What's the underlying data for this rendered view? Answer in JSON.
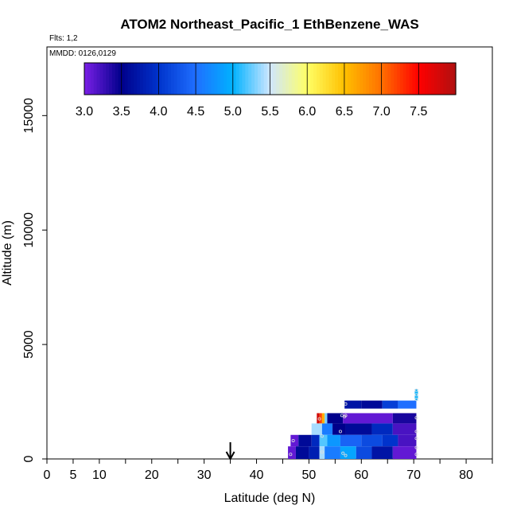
{
  "chart_data": {
    "type": "heatmap",
    "title": "ATOM2 Northeast_Pacific_1 EthBenzene_WAS",
    "flights_label": "Flts: 1,2",
    "mmdd_label": "MMDD: 0126,0129",
    "xlabel": "Latitude (deg N)",
    "ylabel": "Altitude (m)",
    "xlim": [
      0,
      85
    ],
    "ylim": [
      0,
      18000
    ],
    "x_ticks": [
      0,
      5,
      10,
      20,
      30,
      40,
      50,
      60,
      70,
      80
    ],
    "y_ticks": [
      0,
      5000,
      10000,
      15000
    ],
    "colorbar": {
      "min": 3.0,
      "max": 8.0,
      "tick_labels": [
        "3.0",
        "3.5",
        "4.0",
        "4.5",
        "5.0",
        "5.5",
        "6.0",
        "6.5",
        "7.0",
        "7.5"
      ],
      "colors": [
        "#7a1fe6",
        "#00008b",
        "#0033cc",
        "#1f6fff",
        "#00b2ff",
        "#cfe6ff",
        "#ffff66",
        "#ffc000",
        "#ff7000",
        "#ff0000",
        "#b01010"
      ]
    },
    "marker_latitude": 35,
    "rows": [
      {
        "alt": [
          2800,
          3050
        ],
        "cells": [
          {
            "lat": [
              70.2,
              70.8
            ],
            "value": 5.0
          }
        ]
      },
      {
        "alt": [
          2550,
          2800
        ],
        "cells": [
          {
            "lat": [
              70.2,
              70.8
            ],
            "value": 5.0
          }
        ]
      },
      {
        "alt": [
          2200,
          2550
        ],
        "cells": [
          {
            "lat": [
              56.8,
              60.0
            ],
            "value": 3.7
          },
          {
            "lat": [
              60.0,
              64.0
            ],
            "value": 3.6
          },
          {
            "lat": [
              64.0,
              67.0
            ],
            "value": 4.1
          },
          {
            "lat": [
              67.0,
              70.5
            ],
            "value": 4.5
          }
        ]
      },
      {
        "alt": [
          1550,
          2000
        ],
        "cells": [
          {
            "lat": [
              51.5,
              52.0
            ],
            "value": 7.8
          },
          {
            "lat": [
              52.0,
              52.5
            ],
            "value": 7.2
          },
          {
            "lat": [
              52.5,
              53.0
            ],
            "value": 6.6
          },
          {
            "lat": [
              53.0,
              53.5
            ],
            "value": 5.3
          },
          {
            "lat": [
              53.5,
              56.5
            ],
            "value": 3.5
          },
          {
            "lat": [
              56.5,
              66.0
            ],
            "value": 3.1
          },
          {
            "lat": [
              66.0,
              70.5
            ],
            "value": 3.4
          }
        ]
      },
      {
        "alt": [
          1050,
          1550
        ],
        "cells": [
          {
            "lat": [
              50.5,
              52.5
            ],
            "value": 5.4
          },
          {
            "lat": [
              52.5,
              54.5
            ],
            "value": 4.6
          },
          {
            "lat": [
              54.5,
              57.0
            ],
            "value": 3.5
          },
          {
            "lat": [
              57.0,
              62.0
            ],
            "value": 3.6
          },
          {
            "lat": [
              62.0,
              66.0
            ],
            "value": 3.9
          },
          {
            "lat": [
              66.0,
              70.5
            ],
            "value": 3.2
          }
        ]
      },
      {
        "alt": [
          550,
          1050
        ],
        "cells": [
          {
            "lat": [
              46.5,
              48.0
            ],
            "value": 3.1
          },
          {
            "lat": [
              48.0,
              50.5
            ],
            "value": 3.6
          },
          {
            "lat": [
              50.5,
              52.0
            ],
            "value": 3.9
          },
          {
            "lat": [
              52.0,
              53.5
            ],
            "value": 5.2
          },
          {
            "lat": [
              53.5,
              56.0
            ],
            "value": 4.8
          },
          {
            "lat": [
              56.0,
              60.0
            ],
            "value": 4.4
          },
          {
            "lat": [
              60.0,
              64.0
            ],
            "value": 4.2
          },
          {
            "lat": [
              64.0,
              67.0
            ],
            "value": 4.0
          },
          {
            "lat": [
              67.0,
              70.5
            ],
            "value": 3.2
          }
        ]
      },
      {
        "alt": [
          0,
          550
        ],
        "cells": [
          {
            "lat": [
              46.0,
              47.5
            ],
            "value": 3.1
          },
          {
            "lat": [
              47.5,
              50.0
            ],
            "value": 3.6
          },
          {
            "lat": [
              50.0,
              52.0
            ],
            "value": 3.8
          },
          {
            "lat": [
              52.0,
              53.0
            ],
            "value": 5.4
          },
          {
            "lat": [
              53.0,
              56.0
            ],
            "value": 4.6
          },
          {
            "lat": [
              56.0,
              59.0
            ],
            "value": 4.9
          },
          {
            "lat": [
              59.0,
              62.0
            ],
            "value": 4.2
          },
          {
            "lat": [
              62.0,
              66.0
            ],
            "value": 3.7
          },
          {
            "lat": [
              66.0,
              70.5
            ],
            "value": 3.1
          }
        ]
      }
    ],
    "points": [
      [
        70.5,
        3000
      ],
      [
        70.5,
        2800
      ],
      [
        70.5,
        2600
      ],
      [
        70.5,
        1800
      ],
      [
        70.5,
        1200
      ],
      [
        70.5,
        900
      ],
      [
        70.5,
        500
      ],
      [
        70.5,
        200
      ],
      [
        57.0,
        2400
      ],
      [
        56.3,
        1900
      ],
      [
        57.0,
        1900
      ],
      [
        56.8,
        1850
      ],
      [
        52.0,
        1750
      ],
      [
        52.5,
        1000
      ],
      [
        56.0,
        1200
      ],
      [
        47.0,
        800
      ],
      [
        46.5,
        200
      ],
      [
        52.5,
        300
      ],
      [
        56.5,
        250
      ],
      [
        57.0,
        150
      ]
    ]
  }
}
